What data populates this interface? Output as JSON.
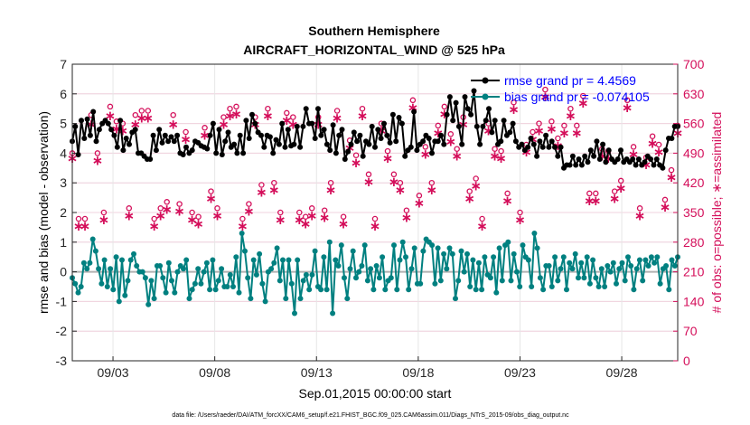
{
  "chart_data": {
    "type": "line",
    "title": "Southern Hemisphere",
    "subtitle": "AIRCRAFT_HORIZONTAL_WIND @ 525 hPa",
    "xlabel": "Sep.01,2015 00:00:00 start",
    "ylabel": "rmse and bias (model - observation)",
    "ylabel_right": "# of obs: o=possible; ∗=assimilated",
    "footnote": "data file: /Users/raeder/DAI/ATM_forcXX/CAM6_setup/f.e21.FHIST_BGC.f09_025.CAM6assim.011/Diags_NTrS_2015-09/obs_diag_output.nc",
    "x_range": [
      1,
      30.75
    ],
    "ylim": [
      -3,
      7
    ],
    "ylim_right": [
      0,
      700
    ],
    "y_ticks": [
      "-3",
      "-2",
      "-1",
      "0",
      "1",
      "2",
      "3",
      "4",
      "5",
      "6",
      "7"
    ],
    "y_right_ticks": [
      "0",
      "70",
      "140",
      "210",
      "280",
      "350",
      "420",
      "490",
      "560",
      "630",
      "700"
    ],
    "x_ticks": [
      {
        "label": "09/03",
        "day": 3
      },
      {
        "label": "09/08",
        "day": 8
      },
      {
        "label": "09/13",
        "day": 13
      },
      {
        "label": "09/18",
        "day": 18
      },
      {
        "label": "09/23",
        "day": 23
      },
      {
        "label": "09/28",
        "day": 28
      }
    ],
    "grid": true,
    "legend_position": "top-right",
    "legend": [
      {
        "label": "rmse grand pr = 4.4569",
        "color": "#000000"
      },
      {
        "label": "bias grand pr = -0.074105",
        "color": "#008080"
      }
    ],
    "colors": {
      "rmse": "#000000",
      "bias": "#008080",
      "obs": "#d40e5a",
      "zero": "#b0b0b0",
      "grid": "#e6e6e6"
    },
    "series": [
      {
        "name": "rmse",
        "values": [
          4.4,
          4.9,
          3.95,
          5.1,
          4.5,
          5.15,
          4.6,
          5.4,
          4.4,
          4.8,
          5.0,
          5.1,
          5.0,
          4.8,
          4.6,
          4.2,
          5.1,
          4.1,
          4.5,
          4.3,
          4.7,
          4.8,
          4.0,
          4.0,
          3.9,
          3.8,
          3.8,
          4.6,
          4.1,
          4.8,
          4.35,
          4.6,
          4.4,
          4.55,
          4.4,
          4.6,
          4.0,
          3.95,
          4.2,
          4.0,
          4.1,
          4.4,
          4.35,
          4.25,
          4.2,
          4.15,
          4.6,
          5.0,
          4.0,
          4.8,
          3.95,
          4.4,
          4.7,
          4.2,
          4.3,
          4.0,
          4.6,
          4.0,
          5.1,
          4.5,
          5.3,
          5.0,
          4.7,
          4.6,
          4.2,
          4.6,
          4.55,
          4.0,
          4.45,
          4.3,
          5.0,
          4.2,
          4.8,
          4.25,
          4.3,
          4.9,
          4.2,
          4.9,
          5.5,
          5.0,
          5.0,
          4.5,
          5.5,
          4.6,
          4.8,
          4.3,
          4.1,
          4.95,
          4.0,
          4.6,
          4.8,
          3.8,
          4.05,
          4.3,
          4.7,
          4.4,
          4.6,
          3.9,
          4.4,
          4.3,
          4.9,
          4.2,
          4.8,
          4.5,
          5.0,
          4.6,
          4.35,
          5.3,
          4.4,
          5.2,
          5.0,
          3.9,
          4.1,
          4.2,
          5.4,
          4.1,
          4.3,
          4.4,
          4.6,
          4.5,
          4.0,
          4.4,
          4.4,
          4.6,
          4.3,
          5.3,
          5.9,
          5.1,
          5.7,
          4.9,
          4.3,
          5.9,
          5.5,
          5.3,
          6.1,
          4.9,
          4.3,
          4.9,
          5.1,
          5.5,
          4.7,
          5.1,
          4.3,
          4.4,
          5.1,
          4.6,
          4.7,
          5.0,
          4.4,
          4.2,
          4.3,
          4.1,
          4.2,
          4.5,
          4.3,
          3.9,
          4.4,
          4.2,
          4.6,
          4.2,
          4.4,
          4.2,
          3.9,
          4.2,
          3.5,
          3.6,
          3.6,
          3.9,
          3.6,
          3.8,
          3.6,
          3.9,
          3.7,
          4.1,
          3.9,
          4.4,
          3.8,
          4.3,
          3.7,
          4.1,
          3.8,
          3.7,
          3.8,
          4.1,
          3.7,
          3.8,
          3.7,
          3.8,
          3.6,
          3.8,
          3.6,
          3.7,
          3.9,
          3.8,
          3.6,
          3.8,
          3.6,
          3.5,
          4.1,
          4.5,
          4.5,
          4.9,
          4.9
        ]
      },
      {
        "name": "bias",
        "values": [
          -0.2,
          -0.4,
          -0.7,
          -0.5,
          0.3,
          0.1,
          0.3,
          1.1,
          0.7,
          0.1,
          -0.4,
          0.4,
          -0.5,
          0.1,
          -0.6,
          0.5,
          -1.0,
          0.4,
          -0.8,
          -0.3,
          0.4,
          0.6,
          0.2,
          0.0,
          0.0,
          -0.2,
          -1.1,
          -0.3,
          -0.9,
          0.2,
          0.2,
          -0.2,
          -0.7,
          0.3,
          -0.3,
          -0.7,
          0.0,
          0.2,
          0.1,
          0.4,
          -0.9,
          -0.6,
          -0.4,
          0.1,
          -0.4,
          0.0,
          0.3,
          -0.6,
          0.4,
          -0.6,
          -0.3,
          0.1,
          -0.5,
          -0.5,
          -0.1,
          -0.5,
          0.5,
          -0.7,
          1.3,
          0.7,
          -0.2,
          -0.9,
          0.4,
          -0.1,
          0.6,
          -0.4,
          -1.0,
          0.0,
          0.1,
          0.3,
          0.8,
          -0.3,
          0.4,
          -0.9,
          0.4,
          -0.4,
          -1.4,
          0.4,
          -0.9,
          -0.3,
          -0.1,
          -0.6,
          -0.1,
          0.7,
          -0.5,
          -0.6,
          0.5,
          -0.6,
          1.0,
          -1.4,
          0.4,
          0.2,
          0.9,
          -0.2,
          -0.9,
          0.1,
          0.7,
          -0.2,
          0.0,
          0.2,
          0.9,
          -0.3,
          0.1,
          -0.6,
          0.2,
          -0.2,
          0.5,
          -0.6,
          -0.3,
          -0.2,
          0.9,
          -0.6,
          0.4,
          1.0,
          0.5,
          -0.6,
          0.1,
          0.8,
          -0.4,
          -0.4,
          0.7,
          1.1,
          1.0,
          0.9,
          -0.4,
          0.8,
          -0.3,
          0.6,
          0.1,
          0.8,
          0.6,
          -0.9,
          -0.3,
          0.7,
          0.0,
          0.6,
          -0.5,
          0.4,
          -0.6,
          0.3,
          -0.6,
          0.5,
          -0.1,
          -0.2,
          0.5,
          -0.7,
          0.8,
          -0.3,
          0.9,
          1.0,
          -0.3,
          0.6,
          0.0,
          -0.5,
          0.9,
          0.5,
          0.4,
          -0.5,
          1.3,
          0.8,
          -0.2,
          -0.6,
          0.2,
          0.2,
          -0.5,
          0.5,
          -0.3,
          0.1,
          0.5,
          -0.6,
          0.3,
          0.1,
          0.6,
          -0.2,
          0.3,
          -0.2,
          0.5,
          -0.4,
          0.4,
          -0.2,
          -0.5,
          0.1,
          -0.5,
          0.2,
          0.0,
          0.3,
          -0.4,
          0.1,
          0.3,
          -0.3,
          0.5,
          0.2,
          -0.6,
          0.1,
          0.4,
          -0.3,
          0.4,
          0.2,
          0.5,
          0.3,
          0.5,
          -0.4,
          0.1,
          0.2,
          -0.6,
          0.4,
          0.2,
          0.5
        ]
      },
      {
        "name": "obs_possible",
        "values": [
          490,
          335,
          335,
          580,
          490,
          350,
          600,
          565,
          560,
          360,
          580,
          590,
          590,
          335,
          360,
          375,
          580,
          370,
          540,
          350,
          340,
          550,
          400,
          360,
          575,
          595,
          600,
          335,
          370,
          575,
          415,
          595,
          420,
          350,
          585,
          575,
          350,
          340,
          360,
          575,
          355,
          420,
          590,
          340,
          520,
          485,
          595,
          440,
          335,
          560,
          495,
          440,
          420,
          355,
          615,
          390,
          505,
          420,
          555,
          600,
          535,
          500,
          575,
          400,
          430,
          335,
          560,
          500,
          495,
          395,
          610,
          350,
          510,
          540,
          560,
          640,
          565,
          525,
          555,
          595,
          555,
          625,
          395,
          395,
          500,
          495,
          400,
          425,
          615,
          505,
          360,
          480,
          530,
          510,
          380,
          450,
          555
        ]
      },
      {
        "name": "obs_assimilated",
        "values": [
          480,
          320,
          320,
          560,
          475,
          335,
          580,
          550,
          545,
          345,
          560,
          575,
          575,
          320,
          345,
          360,
          560,
          355,
          525,
          335,
          325,
          535,
          385,
          345,
          560,
          580,
          585,
          320,
          355,
          560,
          400,
          580,
          405,
          335,
          570,
          560,
          335,
          325,
          345,
          560,
          340,
          405,
          575,
          325,
          505,
          470,
          580,
          425,
          320,
          545,
          480,
          425,
          405,
          340,
          600,
          375,
          490,
          405,
          540,
          585,
          520,
          485,
          560,
          385,
          415,
          320,
          545,
          485,
          480,
          380,
          595,
          335,
          495,
          525,
          545,
          625,
          550,
          510,
          540,
          580,
          540,
          610,
          380,
          380,
          485,
          480,
          385,
          410,
          600,
          490,
          345,
          465,
          515,
          495,
          365,
          435,
          540
        ]
      }
    ]
  }
}
